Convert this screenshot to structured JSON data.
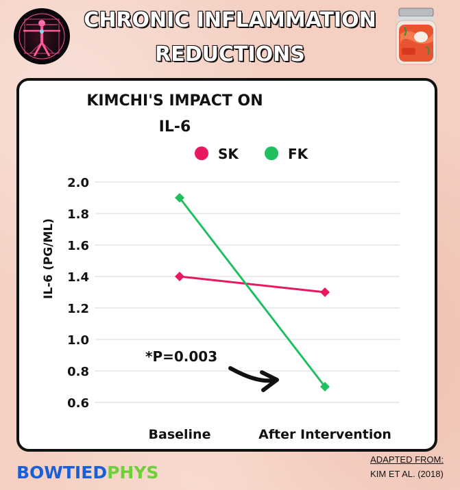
{
  "header": {
    "title_line1": "CHRONIC INFLAMMATION",
    "title_line2": "REDUCTIONS"
  },
  "chart_data": {
    "type": "line",
    "title_line1": "KIMCHI'S IMPACT ON",
    "title_line2": "IL-6",
    "ylabel": "IL-6 (PG/ML)",
    "categories": [
      "Baseline",
      "After Intervention"
    ],
    "series": [
      {
        "name": "SK",
        "color": "#e8195f",
        "values": [
          1.4,
          1.3
        ]
      },
      {
        "name": "FK",
        "color": "#1fbf5f",
        "values": [
          1.9,
          0.7
        ]
      }
    ],
    "yticks": [
      "2.0",
      "1.8",
      "1.6",
      "1.4",
      "1.2",
      "1.0",
      "0.8",
      "0.6"
    ],
    "ylim": [
      0.6,
      2.0
    ],
    "grid": true,
    "legend_position": "top",
    "annotation": "*P=0.003"
  },
  "footer": {
    "brand_part1": "BOWTIED",
    "brand_part2": "PHYS",
    "source_line1": "ADAPTED FROM:",
    "source_line2": "KIM ET AL. (2018)"
  },
  "icons": {
    "left": "vitruvian-man-icon",
    "right": "kimchi-jar-icon"
  }
}
